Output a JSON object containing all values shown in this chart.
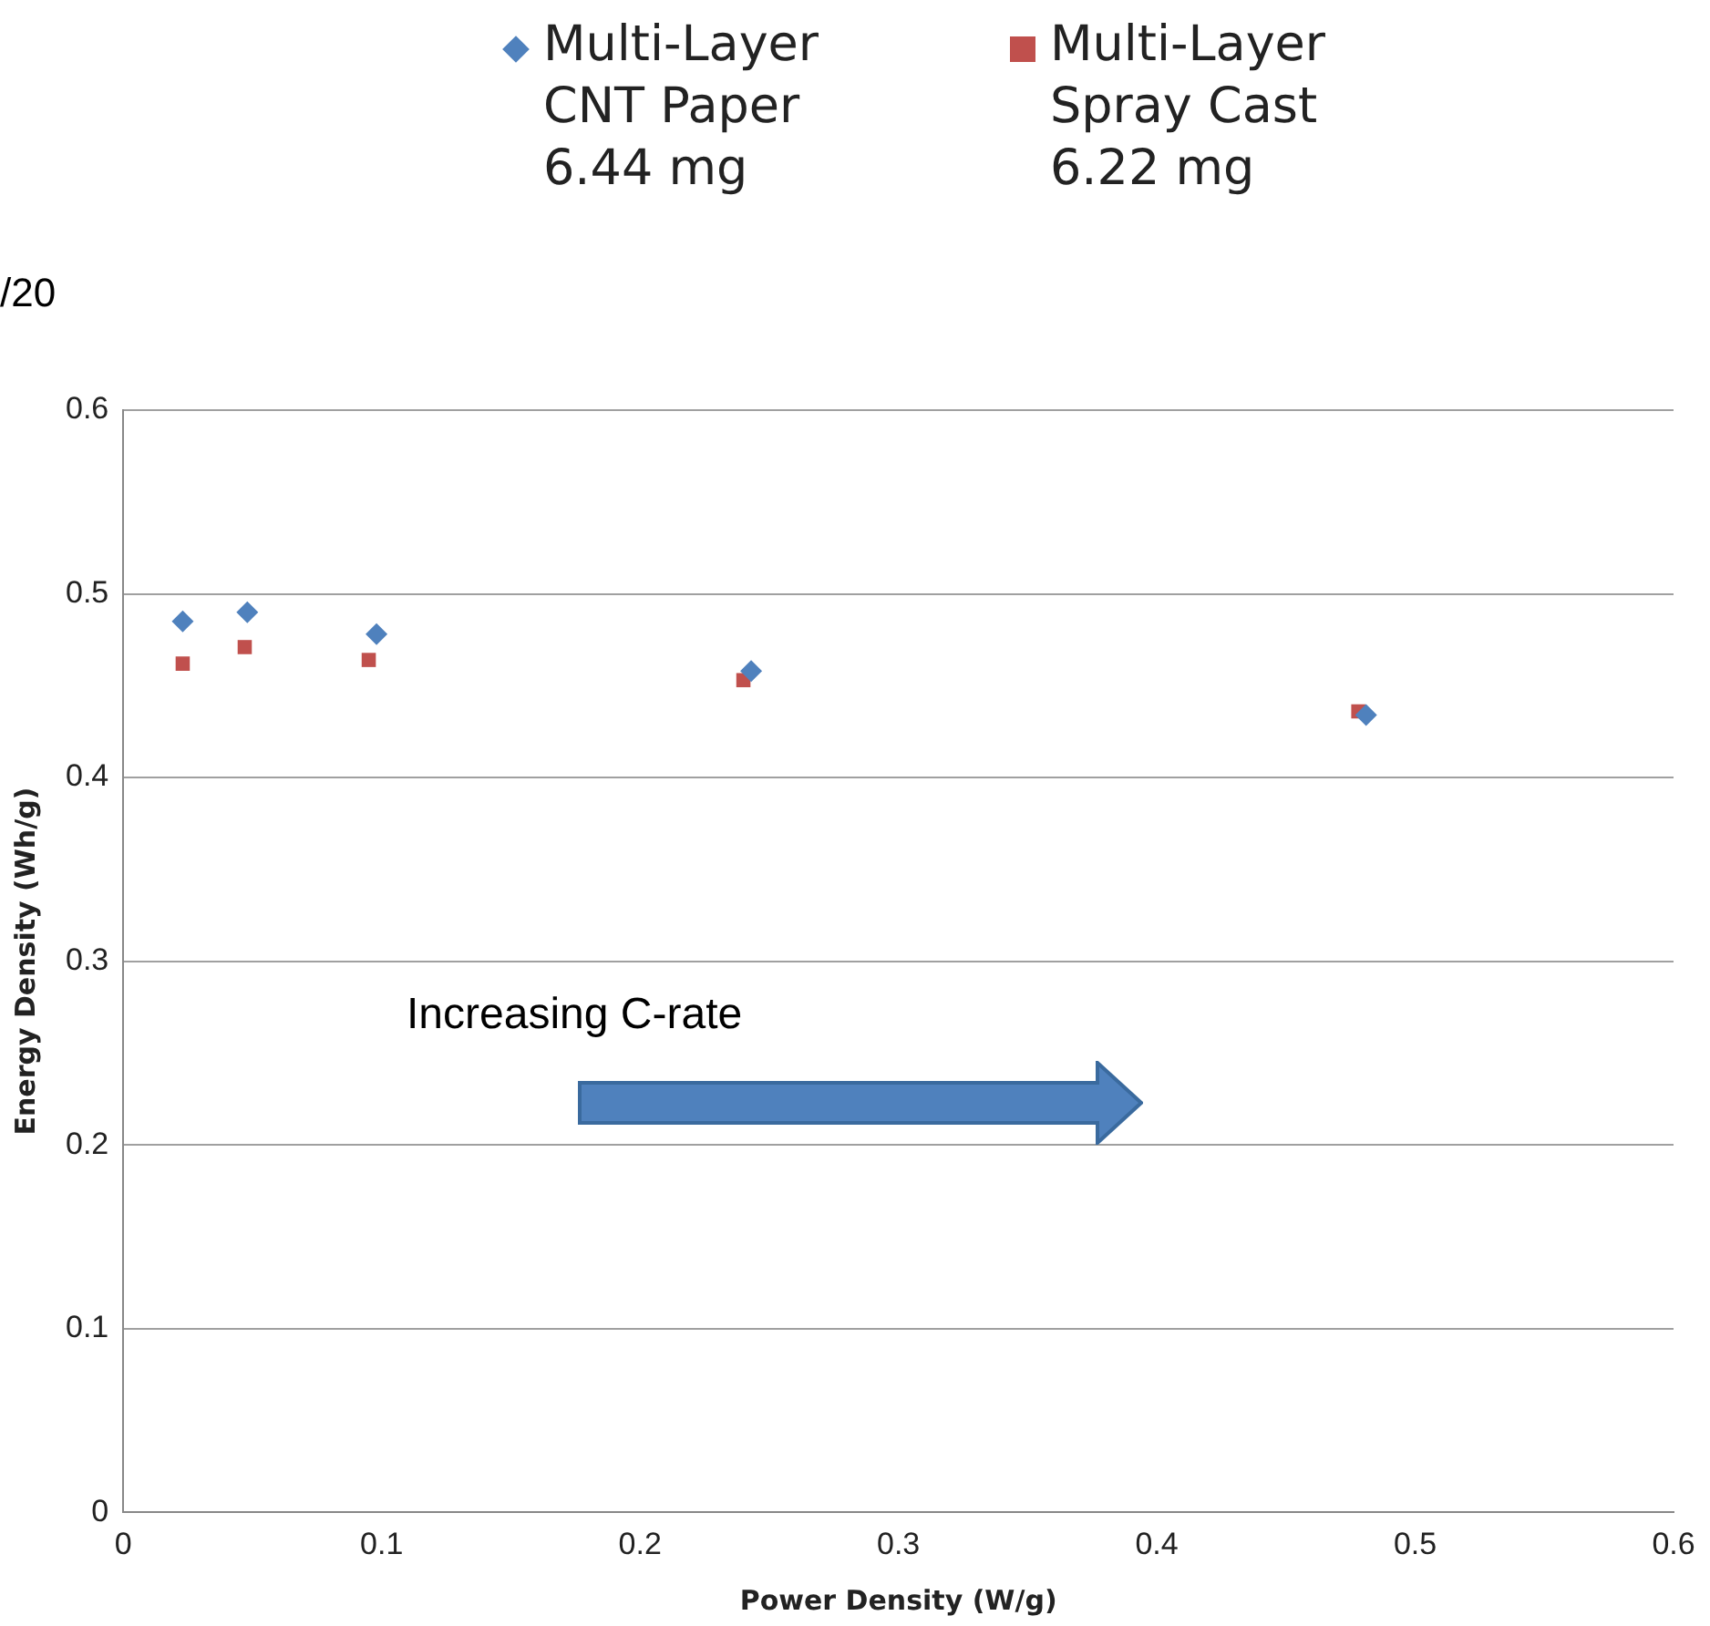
{
  "chart_data": {
    "type": "scatter",
    "xlabel": "Power Density (W/g)",
    "ylabel": "Energy Density (Wh/g)",
    "series": [
      {
        "name": "Multi-Layer CNT Paper 6.44 mg",
        "color": "#4f81bd",
        "marker": "diamond",
        "x": [
          0.023,
          0.048,
          0.098,
          0.243,
          0.481
        ],
        "values": [
          0.485,
          0.49,
          0.478,
          0.458,
          0.434
        ]
      },
      {
        "name": "Multi-Layer Spray Cast 6.22 mg",
        "color": "#c0504d",
        "marker": "square",
        "x": [
          0.023,
          0.047,
          0.095,
          0.24,
          0.478
        ],
        "values": [
          0.462,
          0.471,
          0.464,
          0.453,
          0.436
        ]
      }
    ],
    "xlim": [
      0,
      0.6
    ],
    "xticks": [
      0,
      0.1,
      0.2,
      0.3,
      0.4,
      0.5,
      0.6
    ],
    "ylim": [
      0,
      0.6
    ],
    "yticks": [
      0,
      0.1,
      0.2,
      0.3,
      0.4,
      0.5,
      0.6
    ],
    "grid": "y",
    "legend": "top",
    "annotations": [
      "/20",
      "Increasing C-rate"
    ]
  }
}
